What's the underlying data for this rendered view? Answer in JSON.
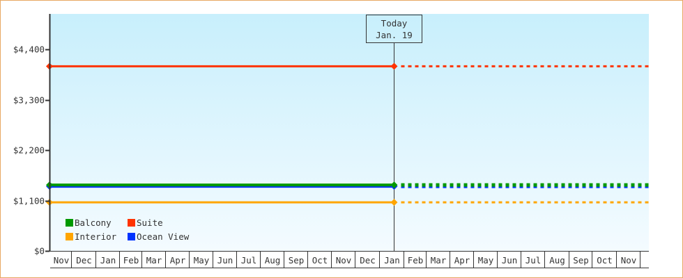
{
  "chart_data": {
    "type": "line",
    "title": "",
    "xlabel": "",
    "ylabel": "",
    "y_ticks": [
      "$0",
      "$1,100",
      "$2,200",
      "$3,300",
      "$4,400"
    ],
    "y_tick_values": [
      0,
      1100,
      2200,
      3300,
      4400
    ],
    "ylim": [
      0,
      4800
    ],
    "x_ticks": [
      "Nov",
      "Dec",
      "Jan",
      "Feb",
      "Mar",
      "Apr",
      "May",
      "Jun",
      "Jul",
      "Aug",
      "Sep",
      "Oct",
      "Nov",
      "Dec",
      "Jan",
      "Feb",
      "Mar",
      "Apr",
      "May",
      "Jun",
      "Jul",
      "Aug",
      "Sep",
      "Oct",
      "Nov"
    ],
    "today_marker": {
      "line1": "Today",
      "line2": "Jan. 19"
    },
    "grid": false,
    "legend_placement": "bottom-left",
    "series": [
      {
        "name": "Balcony",
        "color": "#009900",
        "values": [
          1440,
          1440
        ],
        "projected": 1440
      },
      {
        "name": "Suite",
        "color": "#ff3300",
        "values": [
          4030,
          4030
        ],
        "projected": 4030
      },
      {
        "name": "Interior",
        "color": "#ffa500",
        "values": [
          1060,
          1060
        ],
        "projected": 1060
      },
      {
        "name": "Ocean View",
        "color": "#0033ff",
        "values": [
          1410,
          1410
        ],
        "projected": 1410
      }
    ],
    "background_gradient": [
      "#c8effc",
      "#f4fbff"
    ],
    "border_color": "#e8a862"
  }
}
